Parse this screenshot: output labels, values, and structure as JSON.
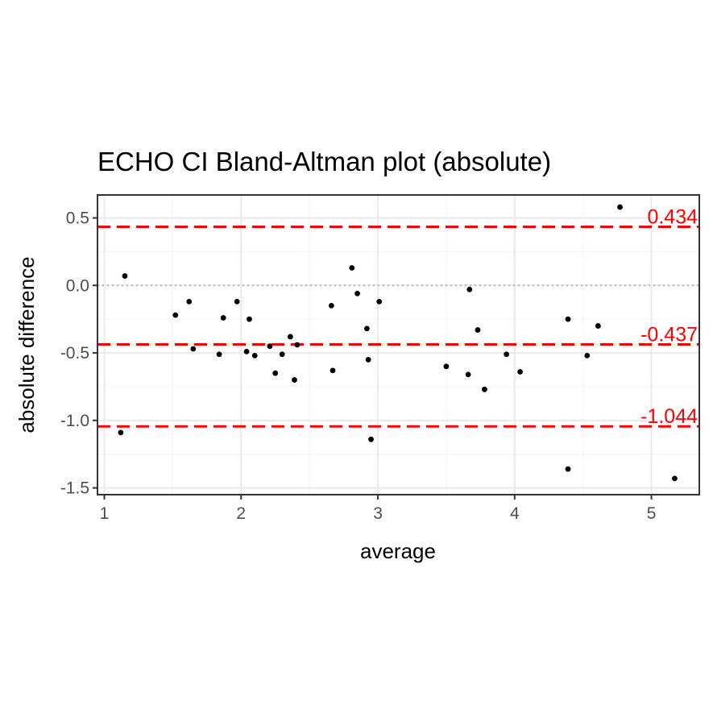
{
  "chart_data": {
    "type": "scatter",
    "title": "ECHO CI   Bland-Altman plot (absolute)",
    "xlabel": "average",
    "ylabel": "absolute difference",
    "xlim": [
      0.95,
      5.35
    ],
    "ylim": [
      -1.55,
      0.67
    ],
    "x_ticks": [
      1,
      2,
      3,
      4,
      5
    ],
    "x_tick_labels": [
      "1",
      "2",
      "3",
      "4",
      "5"
    ],
    "y_ticks": [
      0.5,
      0.0,
      -0.5,
      -1.0,
      -1.5
    ],
    "y_tick_labels": [
      "0.5",
      "0.0",
      "-0.5",
      "-1.0",
      "-1.5"
    ],
    "grid": true,
    "zero_line": 0,
    "reference_lines": [
      {
        "value": 0.434,
        "label": "0.434",
        "color": "#ff0000",
        "style": "dashed"
      },
      {
        "value": -0.437,
        "label": "-0.437",
        "color": "#ff0000",
        "style": "dashed"
      },
      {
        "value": -1.044,
        "label": "-1.044",
        "color": "#ff0000",
        "style": "dashed"
      }
    ],
    "points": [
      {
        "x": 1.12,
        "y": -1.09
      },
      {
        "x": 1.15,
        "y": 0.07
      },
      {
        "x": 1.52,
        "y": -0.22
      },
      {
        "x": 1.62,
        "y": -0.12
      },
      {
        "x": 1.65,
        "y": -0.47
      },
      {
        "x": 1.84,
        "y": -0.51
      },
      {
        "x": 1.87,
        "y": -0.24
      },
      {
        "x": 1.97,
        "y": -0.12
      },
      {
        "x": 2.04,
        "y": -0.49
      },
      {
        "x": 2.06,
        "y": -0.25
      },
      {
        "x": 2.1,
        "y": -0.52
      },
      {
        "x": 2.21,
        "y": -0.45
      },
      {
        "x": 2.25,
        "y": -0.65
      },
      {
        "x": 2.3,
        "y": -0.51
      },
      {
        "x": 2.36,
        "y": -0.38
      },
      {
        "x": 2.39,
        "y": -0.7
      },
      {
        "x": 2.41,
        "y": -0.44
      },
      {
        "x": 2.66,
        "y": -0.15
      },
      {
        "x": 2.67,
        "y": -0.63
      },
      {
        "x": 2.81,
        "y": 0.13
      },
      {
        "x": 2.85,
        "y": -0.06
      },
      {
        "x": 2.92,
        "y": -0.32
      },
      {
        "x": 2.93,
        "y": -0.55
      },
      {
        "x": 2.95,
        "y": -1.14
      },
      {
        "x": 3.01,
        "y": -0.12
      },
      {
        "x": 3.5,
        "y": -0.6
      },
      {
        "x": 3.66,
        "y": -0.66
      },
      {
        "x": 3.67,
        "y": -0.03
      },
      {
        "x": 3.73,
        "y": -0.33
      },
      {
        "x": 3.78,
        "y": -0.77
      },
      {
        "x": 3.94,
        "y": -0.51
      },
      {
        "x": 4.04,
        "y": -0.64
      },
      {
        "x": 4.39,
        "y": -0.25
      },
      {
        "x": 4.39,
        "y": -1.36
      },
      {
        "x": 4.53,
        "y": -0.52
      },
      {
        "x": 4.61,
        "y": -0.3
      },
      {
        "x": 4.77,
        "y": 0.58
      },
      {
        "x": 5.17,
        "y": -1.43
      }
    ],
    "colors": {
      "points": "#000000",
      "reference": "#ff0000",
      "zero_line": "#bebebe",
      "grid_major": "#ebebeb",
      "grid_minor": "#f5f5f5",
      "panel_border": "#333333",
      "tick_text": "#4d4d4d"
    }
  }
}
